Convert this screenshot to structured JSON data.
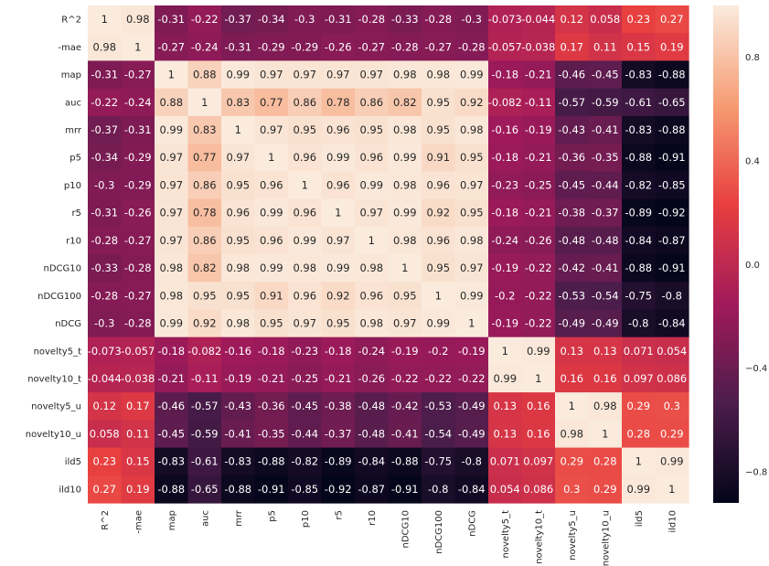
{
  "chart_data": {
    "type": "heatmap",
    "title": "",
    "xlabel": "",
    "ylabel": "",
    "labels": [
      "R^2",
      "-mae",
      "map",
      "auc",
      "mrr",
      "p5",
      "p10",
      "r5",
      "r10",
      "nDCG10",
      "nDCG100",
      "nDCG",
      "novelty5_t",
      "novelty10_t",
      "novelty5_u",
      "novelty10_u",
      "ild5",
      "ild10"
    ],
    "matrix": [
      [
        1,
        0.98,
        -0.31,
        -0.22,
        -0.37,
        -0.34,
        -0.3,
        -0.31,
        -0.28,
        -0.33,
        -0.28,
        -0.3,
        -0.073,
        -0.044,
        0.12,
        0.058,
        0.23,
        0.27
      ],
      [
        0.98,
        1,
        -0.27,
        -0.24,
        -0.31,
        -0.29,
        -0.29,
        -0.26,
        -0.27,
        -0.28,
        -0.27,
        -0.28,
        -0.057,
        -0.038,
        0.17,
        0.11,
        0.15,
        0.19
      ],
      [
        -0.31,
        -0.27,
        1,
        0.88,
        0.99,
        0.97,
        0.97,
        0.97,
        0.97,
        0.98,
        0.98,
        0.99,
        -0.18,
        -0.21,
        -0.46,
        -0.45,
        -0.83,
        -0.88
      ],
      [
        -0.22,
        -0.24,
        0.88,
        1,
        0.83,
        0.77,
        0.86,
        0.78,
        0.86,
        0.82,
        0.95,
        0.92,
        -0.082,
        -0.11,
        -0.57,
        -0.59,
        -0.61,
        -0.65
      ],
      [
        -0.37,
        -0.31,
        0.99,
        0.83,
        1,
        0.97,
        0.95,
        0.96,
        0.95,
        0.98,
        0.95,
        0.98,
        -0.16,
        -0.19,
        -0.43,
        -0.41,
        -0.83,
        -0.88
      ],
      [
        -0.34,
        -0.29,
        0.97,
        0.77,
        0.97,
        1,
        0.96,
        0.99,
        0.96,
        0.99,
        0.91,
        0.95,
        -0.18,
        -0.21,
        -0.36,
        -0.35,
        -0.88,
        -0.91
      ],
      [
        -0.3,
        -0.29,
        0.97,
        0.86,
        0.95,
        0.96,
        1,
        0.96,
        0.99,
        0.98,
        0.96,
        0.97,
        -0.23,
        -0.25,
        -0.45,
        -0.44,
        -0.82,
        -0.85
      ],
      [
        -0.31,
        -0.26,
        0.97,
        0.78,
        0.96,
        0.99,
        0.96,
        1,
        0.97,
        0.99,
        0.92,
        0.95,
        -0.18,
        -0.21,
        -0.38,
        -0.37,
        -0.89,
        -0.92
      ],
      [
        -0.28,
        -0.27,
        0.97,
        0.86,
        0.95,
        0.96,
        0.99,
        0.97,
        1,
        0.98,
        0.96,
        0.98,
        -0.24,
        -0.26,
        -0.48,
        -0.48,
        -0.84,
        -0.87
      ],
      [
        -0.33,
        -0.28,
        0.98,
        0.82,
        0.98,
        0.99,
        0.98,
        0.99,
        0.98,
        1,
        0.95,
        0.97,
        -0.19,
        -0.22,
        -0.42,
        -0.41,
        -0.88,
        -0.91
      ],
      [
        -0.28,
        -0.27,
        0.98,
        0.95,
        0.95,
        0.91,
        0.96,
        0.92,
        0.96,
        0.95,
        1,
        0.99,
        -0.2,
        -0.22,
        -0.53,
        -0.54,
        -0.75,
        -0.8
      ],
      [
        -0.3,
        -0.28,
        0.99,
        0.92,
        0.98,
        0.95,
        0.97,
        0.95,
        0.98,
        0.97,
        0.99,
        1,
        -0.19,
        -0.22,
        -0.49,
        -0.49,
        -0.8,
        -0.84
      ],
      [
        -0.073,
        -0.057,
        -0.18,
        -0.082,
        -0.16,
        -0.18,
        -0.23,
        -0.18,
        -0.24,
        -0.19,
        -0.2,
        -0.19,
        1,
        0.99,
        0.13,
        0.13,
        0.071,
        0.054
      ],
      [
        -0.044,
        -0.038,
        -0.21,
        -0.11,
        -0.19,
        -0.21,
        -0.25,
        -0.21,
        -0.26,
        -0.22,
        -0.22,
        -0.22,
        0.99,
        1,
        0.16,
        0.16,
        0.097,
        0.086
      ],
      [
        0.12,
        0.17,
        -0.46,
        -0.57,
        -0.43,
        -0.36,
        -0.45,
        -0.38,
        -0.48,
        -0.42,
        -0.53,
        -0.49,
        0.13,
        0.16,
        1,
        0.98,
        0.29,
        0.3
      ],
      [
        0.058,
        0.11,
        -0.45,
        -0.59,
        -0.41,
        -0.35,
        -0.44,
        -0.37,
        -0.48,
        -0.41,
        -0.54,
        -0.49,
        0.13,
        0.16,
        0.98,
        1,
        0.28,
        0.29
      ],
      [
        0.23,
        0.15,
        -0.83,
        -0.61,
        -0.83,
        -0.88,
        -0.82,
        -0.89,
        -0.84,
        -0.88,
        -0.75,
        -0.8,
        0.071,
        0.097,
        0.29,
        0.28,
        1,
        0.99
      ],
      [
        0.27,
        0.19,
        -0.88,
        -0.65,
        -0.88,
        -0.91,
        -0.85,
        -0.92,
        -0.87,
        -0.91,
        -0.8,
        -0.84,
        0.054,
        0.086,
        0.3,
        0.29,
        0.99,
        1
      ]
    ],
    "vmin": -0.92,
    "vmax": 1.0,
    "colorbar": {
      "ticks": [
        0.8,
        0.4,
        0.0,
        -0.4,
        -0.8
      ],
      "tick_labels": [
        "0.8",
        "0.4",
        "0.0",
        "−0.4",
        "−0.8"
      ]
    },
    "colormap": [
      "#03051a",
      "#4c1d4b",
      "#a11a5b",
      "#e83f3f",
      "#f69c73",
      "#faebdd"
    ],
    "grid": false,
    "legend": "colorbar-right"
  }
}
